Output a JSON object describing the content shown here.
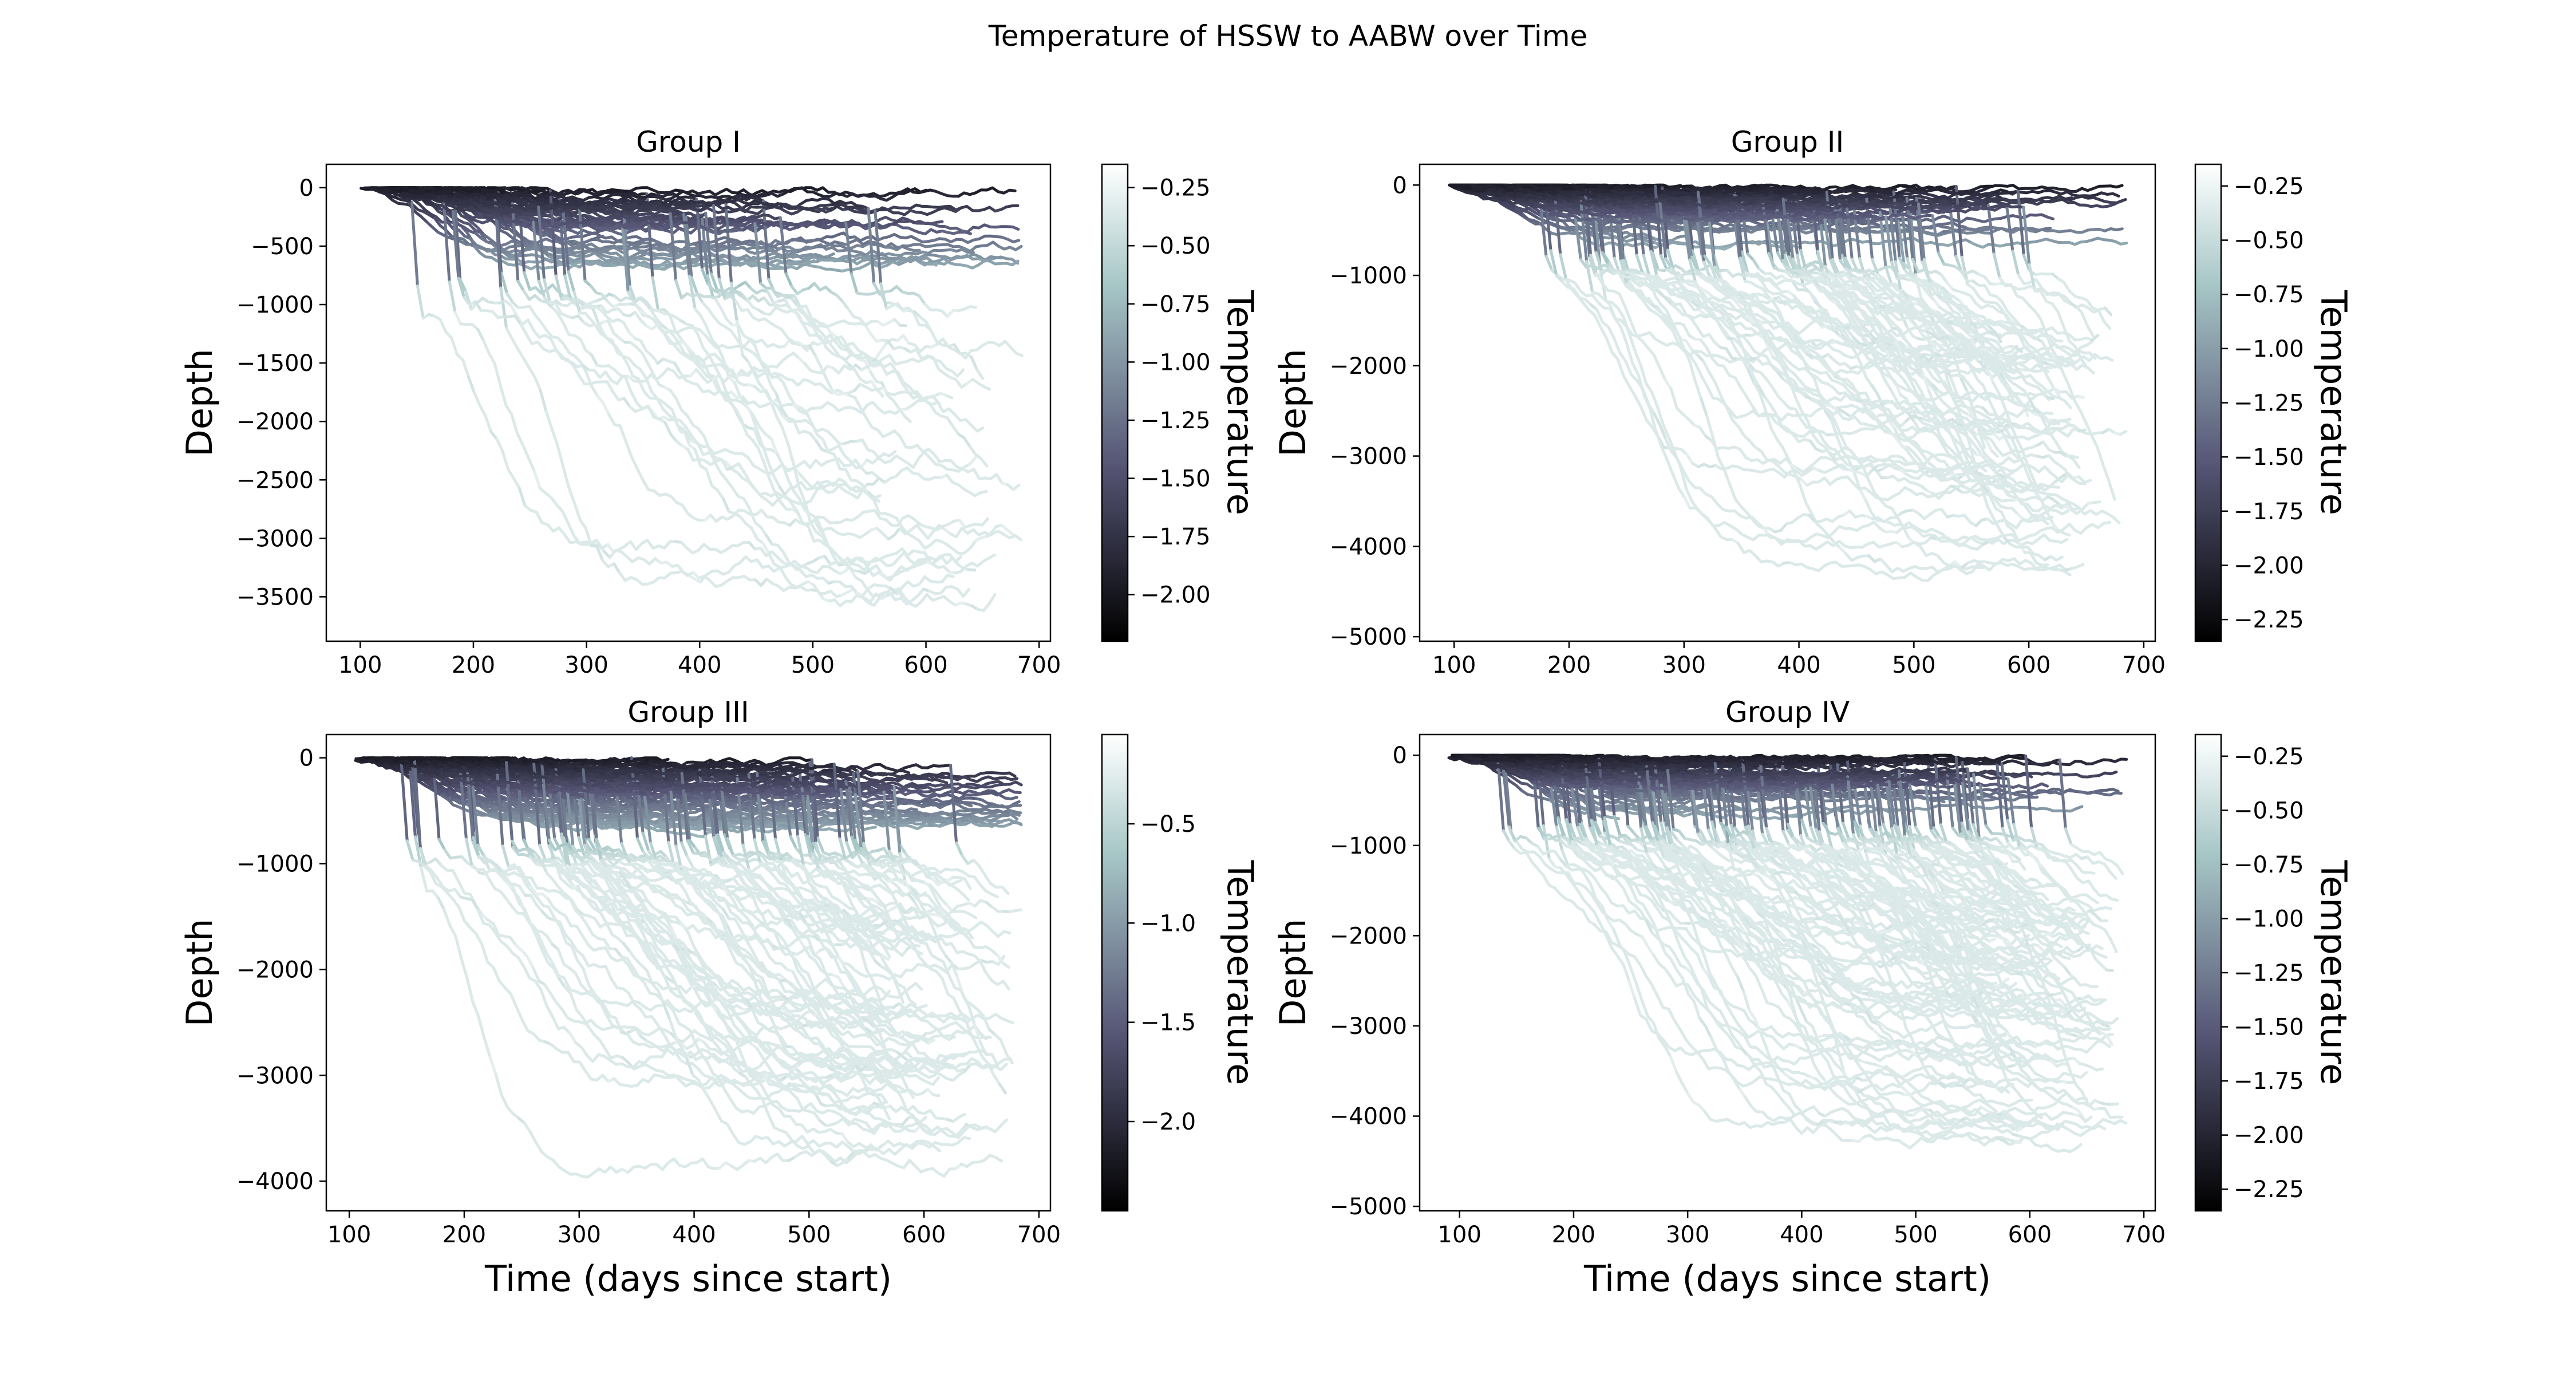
{
  "figure": {
    "title": "Temperature of HSSW to AABW over Time"
  },
  "chart_data": [
    {
      "type": "line",
      "title": "Group I",
      "xlabel": "",
      "ylabel": "Depth",
      "xlim": [
        70,
        710
      ],
      "ylim": [
        -3880,
        200
      ],
      "xticks": [
        100,
        200,
        300,
        400,
        500,
        600,
        700
      ],
      "yticks": [
        0,
        -500,
        -1000,
        -1500,
        -2000,
        -2500,
        -3000,
        -3500
      ],
      "colorbar": {
        "label": "Temperature",
        "range": [
          -2.2,
          -0.15
        ],
        "ticks": [
          -0.25,
          -0.5,
          -0.75,
          -1.0,
          -1.25,
          -1.5,
          -1.75,
          -2.0
        ]
      },
      "n_tracks": 60,
      "start_range": [
        95,
        215
      ],
      "end_max": 685,
      "max_depth": 3700,
      "deep_fraction": 0.55,
      "seed": 11
    },
    {
      "type": "line",
      "title": "Group II",
      "xlabel": "",
      "ylabel": "Depth",
      "xlim": [
        70,
        710
      ],
      "ylim": [
        -5050,
        230
      ],
      "xticks": [
        100,
        200,
        300,
        400,
        500,
        600,
        700
      ],
      "yticks": [
        0,
        -1000,
        -2000,
        -3000,
        -4000,
        -5000
      ],
      "colorbar": {
        "label": "Temperature",
        "range": [
          -2.35,
          -0.15
        ],
        "ticks": [
          -0.25,
          -0.5,
          -0.75,
          -1.0,
          -1.25,
          -1.5,
          -1.75,
          -2.0,
          -2.25
        ]
      },
      "n_tracks": 100,
      "start_range": [
        95,
        190
      ],
      "end_max": 685,
      "max_depth": 4700,
      "deep_fraction": 0.72,
      "seed": 23
    },
    {
      "type": "line",
      "title": "Group III",
      "xlabel": "Time (days since start)",
      "ylabel": "Depth",
      "xlim": [
        80,
        710
      ],
      "ylim": [
        -4280,
        220
      ],
      "xticks": [
        100,
        200,
        300,
        400,
        500,
        600,
        700
      ],
      "yticks": [
        0,
        -1000,
        -2000,
        -3000,
        -4000
      ],
      "colorbar": {
        "label": "Temperature",
        "range": [
          -2.45,
          -0.05
        ],
        "ticks": [
          -0.5,
          -1.0,
          -1.5,
          -2.0
        ]
      },
      "n_tracks": 130,
      "start_range": [
        105,
        230
      ],
      "end_max": 685,
      "max_depth": 4100,
      "deep_fraction": 0.62,
      "seed": 37
    },
    {
      "type": "line",
      "title": "Group IV",
      "xlabel": "Time (days since start)",
      "ylabel": "Depth",
      "xlim": [
        65,
        710
      ],
      "ylim": [
        -5050,
        230
      ],
      "xticks": [
        100,
        200,
        300,
        400,
        500,
        600,
        700
      ],
      "yticks": [
        0,
        -1000,
        -2000,
        -3000,
        -4000,
        -5000
      ],
      "colorbar": {
        "label": "Temperature",
        "range": [
          -2.35,
          -0.15
        ],
        "ticks": [
          -0.25,
          -0.5,
          -0.75,
          -1.0,
          -1.25,
          -1.5,
          -1.75,
          -2.0,
          -2.25
        ]
      },
      "n_tracks": 130,
      "start_range": [
        90,
        170
      ],
      "end_max": 685,
      "max_depth": 4600,
      "deep_fraction": 0.74,
      "seed": 53
    }
  ]
}
